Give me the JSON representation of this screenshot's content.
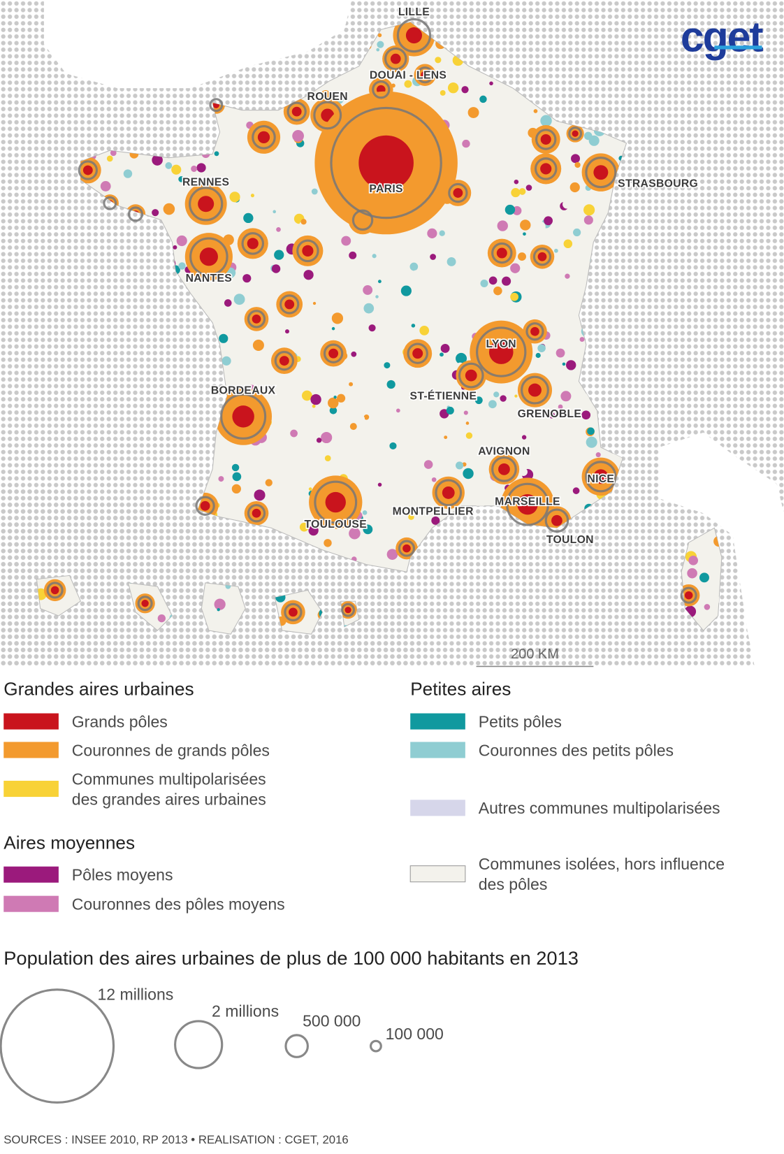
{
  "logo": "cget",
  "map": {
    "cities": [
      "LILLE",
      "DOUAI - LENS",
      "ROUEN",
      "PARIS",
      "STRASBOURG",
      "RENNES",
      "NANTES",
      "LYON",
      "ST-ÉTIENNE",
      "GRENOBLE",
      "BORDEAUX",
      "AVIGNON",
      "NICE",
      "MARSEILLE",
      "TOULON",
      "MONTPELLIER",
      "TOULOUSE"
    ],
    "scale": "200 KM"
  },
  "legend": {
    "groups": [
      {
        "title": "Grandes aires urbaines",
        "items": [
          {
            "label": [
              "Grands pôles"
            ],
            "color": "#c9141d"
          },
          {
            "label": [
              "Couronnes de grands pôles"
            ],
            "color": "#f39a2e"
          },
          {
            "label": [
              "Communes multipolarisées",
              "des grandes aires urbaines"
            ],
            "color": "#f8d237"
          }
        ]
      },
      {
        "title": "Aires moyennes",
        "items": [
          {
            "label": [
              "Pôles moyens"
            ],
            "color": "#9b1a7c"
          },
          {
            "label": [
              "Couronnes des pôles moyens"
            ],
            "color": "#cf7ab4"
          }
        ]
      },
      {
        "title": "Petites aires",
        "items": [
          {
            "label": [
              "Petits pôles"
            ],
            "color": "#10999f"
          },
          {
            "label": [
              "Couronnes des petits pôles"
            ],
            "color": "#8fcdd2"
          },
          {
            "label": [
              "Autres communes multipolarisées"
            ],
            "color": "#d6d6ea"
          },
          {
            "label": [
              "Communes isolées, hors influence",
              "des pôles"
            ],
            "color": "#f3f2ec"
          }
        ]
      }
    ]
  },
  "population_legend": {
    "title": "Population des aires urbaines de plus de 100 000 habitants en 2013",
    "sizes": [
      "12 millions",
      "2 millions",
      "500 000",
      "100 000"
    ]
  },
  "source": "SOURCES : INSEE 2010, RP 2013 • REALISATION : CGET, 2016"
}
